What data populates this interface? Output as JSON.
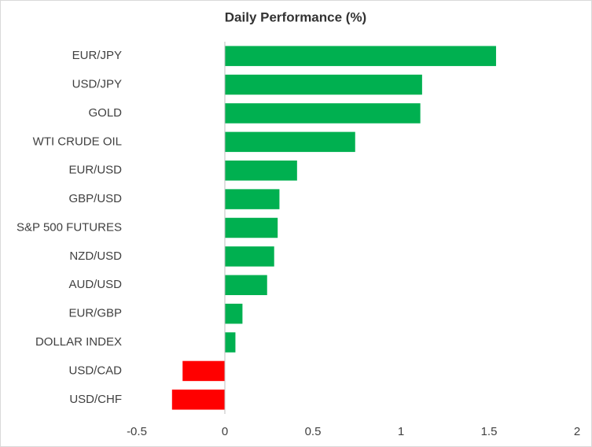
{
  "chart_data": {
    "type": "hbar",
    "title": "Daily Performance  (%)",
    "categories": [
      "EUR/JPY",
      "USD/JPY",
      "GOLD",
      "WTI CRUDE OIL",
      "EUR/USD",
      "GBP/USD",
      "S&P 500 FUTURES",
      "NZD/USD",
      "AUD/USD",
      "EUR/GBP",
      "DOLLAR INDEX",
      "USD/CAD",
      "USD/CHF"
    ],
    "values": [
      1.54,
      1.12,
      1.11,
      0.74,
      0.41,
      0.31,
      0.3,
      0.28,
      0.24,
      0.1,
      0.06,
      -0.24,
      -0.3
    ],
    "color_positive": "#00b050",
    "color_negative": "#ff0000",
    "xlim": [
      -0.5,
      2
    ],
    "xticks": [
      -0.5,
      0,
      0.5,
      1,
      1.5,
      2
    ]
  }
}
